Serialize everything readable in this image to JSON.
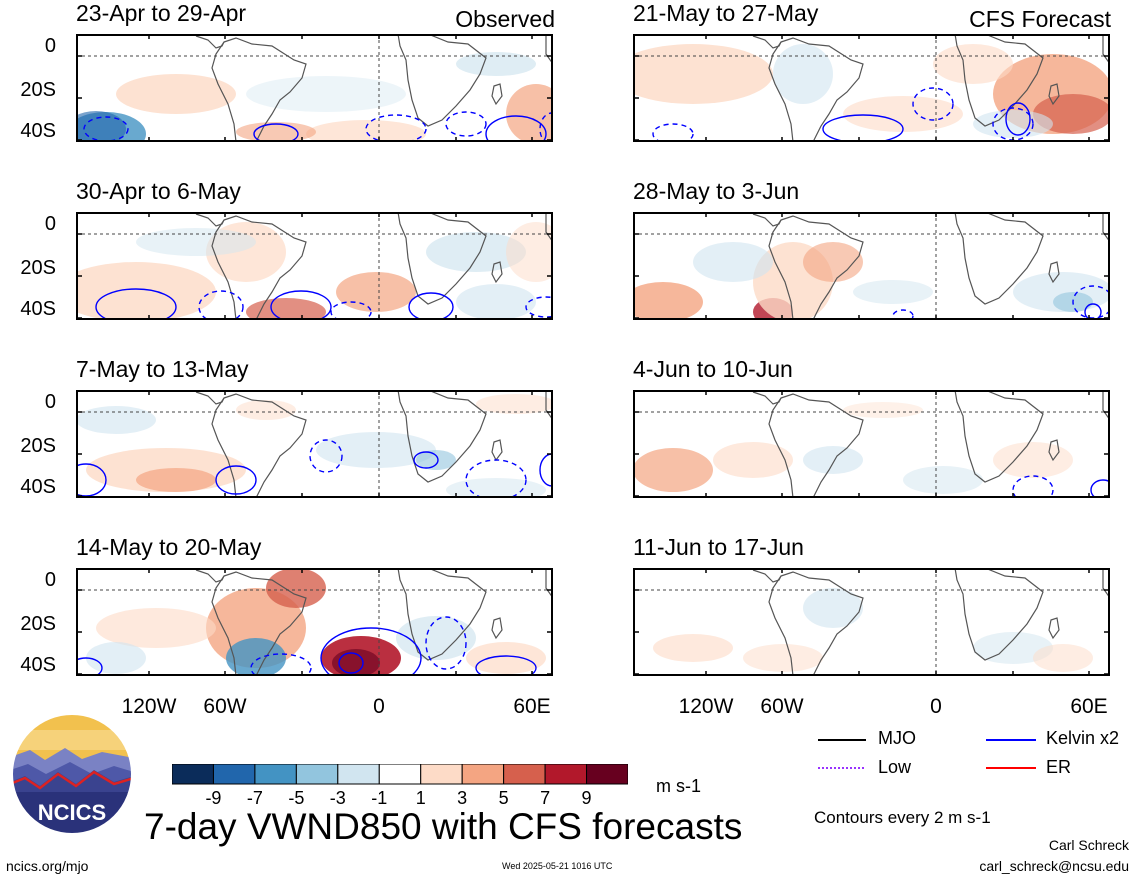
{
  "chart_data": {
    "type": "heatmap",
    "title": "7-day VWND850 with CFS forecasts",
    "variable": "VWND850",
    "units": "m s-1",
    "x_ticks": [
      "120W",
      "60W",
      "0",
      "60E"
    ],
    "y_ticks": [
      "0",
      "20S",
      "40S"
    ],
    "columns": [
      {
        "label": "Observed",
        "panels": [
          "23-Apr to 29-Apr",
          "30-Apr to 6-May",
          "7-May to 13-May",
          "14-May to 20-May"
        ]
      },
      {
        "label": "CFS Forecast",
        "panels": [
          "21-May to 27-May",
          "28-May to 3-Jun",
          "4-Jun to 10-Jun",
          "11-Jun to 17-Jun"
        ]
      }
    ],
    "colorbar": {
      "tick_labels": [
        "-9",
        "-7",
        "-5",
        "-3",
        "-1",
        "1",
        "3",
        "5",
        "7",
        "9"
      ],
      "colors": [
        "#0b2c5a",
        "#2166ac",
        "#4393c3",
        "#92c5de",
        "#d1e5f0",
        "#ffffff",
        "#fddbc7",
        "#f4a582",
        "#d6604d",
        "#b2182b",
        "#67001f"
      ]
    },
    "legend": [
      {
        "label": "MJO",
        "color": "#000000",
        "style": "solid"
      },
      {
        "label": "Kelvin x2",
        "color": "#0000ff",
        "style": "solid"
      },
      {
        "label": "Low",
        "color": "#9933ff",
        "style": "dotted"
      },
      {
        "label": "ER",
        "color": "#ff0000",
        "style": "solid"
      }
    ],
    "contour_note": "Contours every 2 m s-1"
  },
  "footer": {
    "logo_text": "NCICS",
    "url": "ncics.org/mjo",
    "timestamp": "Wed 2025-05-21 1016 UTC",
    "author": "Carl Schreck",
    "email": "carl_schreck@ncsu.edu"
  }
}
